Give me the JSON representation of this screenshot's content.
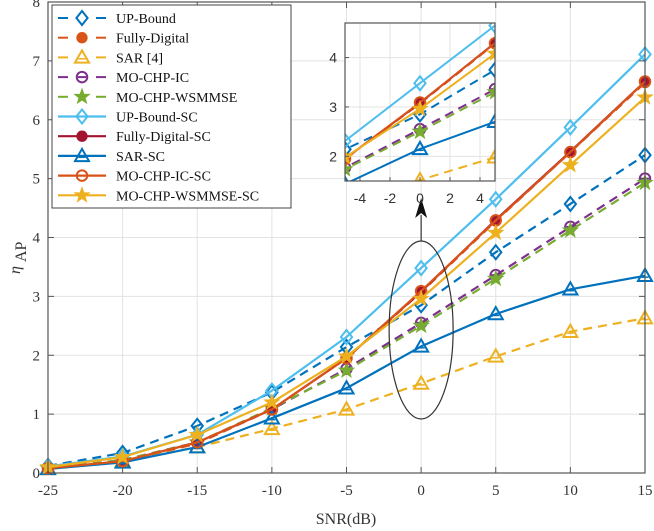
{
  "chart_data": {
    "type": "line",
    "title": "",
    "xlabel": "SNR(dB)",
    "ylabel": "η_AP",
    "ylabel_main": "η",
    "ylabel_sub": "AP",
    "x": [
      -25,
      -20,
      -15,
      -10,
      -5,
      0,
      5,
      10,
      15
    ],
    "xlim": [
      -25,
      15
    ],
    "ylim": [
      0,
      8
    ],
    "xticks": [
      -25,
      -20,
      -15,
      -10,
      -5,
      0,
      5,
      10,
      15
    ],
    "yticks": [
      0,
      1,
      2,
      3,
      4,
      5,
      6,
      7,
      8
    ],
    "grid": true,
    "legend_position": "top-left",
    "series": [
      {
        "name": "UP-Bound",
        "color": "#0072BD",
        "style": "dashed",
        "marker": "diamond",
        "values": [
          0.12,
          0.34,
          0.8,
          1.37,
          2.14,
          2.85,
          3.75,
          4.57,
          5.4
        ]
      },
      {
        "name": "Fully-Digital",
        "color": "#D95319",
        "style": "dashed",
        "marker": "asterisk",
        "values": [
          0.08,
          0.2,
          0.5,
          1.08,
          1.95,
          3.07,
          4.28,
          5.45,
          6.63
        ]
      },
      {
        "name": "SAR [4]",
        "color": "#EDB120",
        "style": "dashed",
        "marker": "triangle",
        "values": [
          0.07,
          0.2,
          0.44,
          0.75,
          1.08,
          1.52,
          1.98,
          2.4,
          2.63
        ]
      },
      {
        "name": "MO-CHP-IC",
        "color": "#7E2F8E",
        "style": "dashed",
        "marker": "circle-bar",
        "values": [
          0.08,
          0.22,
          0.52,
          1.08,
          1.77,
          2.55,
          3.36,
          4.18,
          5.0
        ]
      },
      {
        "name": "MO-CHP-WSMMSE",
        "color": "#77AC30",
        "style": "dashed",
        "marker": "star",
        "values": [
          0.08,
          0.22,
          0.52,
          1.1,
          1.74,
          2.5,
          3.3,
          4.12,
          4.93
        ]
      },
      {
        "name": "UP-Bound-SC",
        "color": "#4DBEEE",
        "style": "solid",
        "marker": "diamond",
        "values": [
          0.11,
          0.28,
          0.65,
          1.4,
          2.31,
          3.48,
          4.65,
          5.87,
          7.11
        ]
      },
      {
        "name": "Fully-Digital-SC",
        "color": "#A2142F",
        "style": "solid",
        "marker": "asterisk",
        "values": [
          0.08,
          0.2,
          0.52,
          1.08,
          1.95,
          3.08,
          4.3,
          5.46,
          6.65
        ]
      },
      {
        "name": "SAR-SC",
        "color": "#0072BD",
        "style": "solid",
        "marker": "triangle",
        "values": [
          0.07,
          0.18,
          0.44,
          0.93,
          1.44,
          2.15,
          2.7,
          3.12,
          3.35
        ]
      },
      {
        "name": "MO-CHP-IC-SC",
        "color": "#D95319",
        "style": "solid",
        "marker": "circle",
        "values": [
          0.08,
          0.2,
          0.52,
          1.08,
          1.95,
          3.09,
          4.29,
          5.45,
          6.65
        ]
      },
      {
        "name": "MO-CHP-WSMMSE-SC",
        "color": "#EDB120",
        "style": "solid",
        "marker": "star",
        "values": [
          0.1,
          0.27,
          0.65,
          1.2,
          1.98,
          2.96,
          4.08,
          5.23,
          6.38
        ]
      }
    ],
    "inset": {
      "xlim": [
        -5,
        5
      ],
      "ylim": [
        1.5,
        4.7
      ],
      "xticks": [
        -4,
        -2,
        0,
        2,
        4
      ],
      "yticks": [
        2,
        3,
        4
      ]
    },
    "annotation": {
      "type": "ellipse-with-arrow",
      "x": 0,
      "description": "zoomed region around SNR = 0 dB"
    }
  }
}
